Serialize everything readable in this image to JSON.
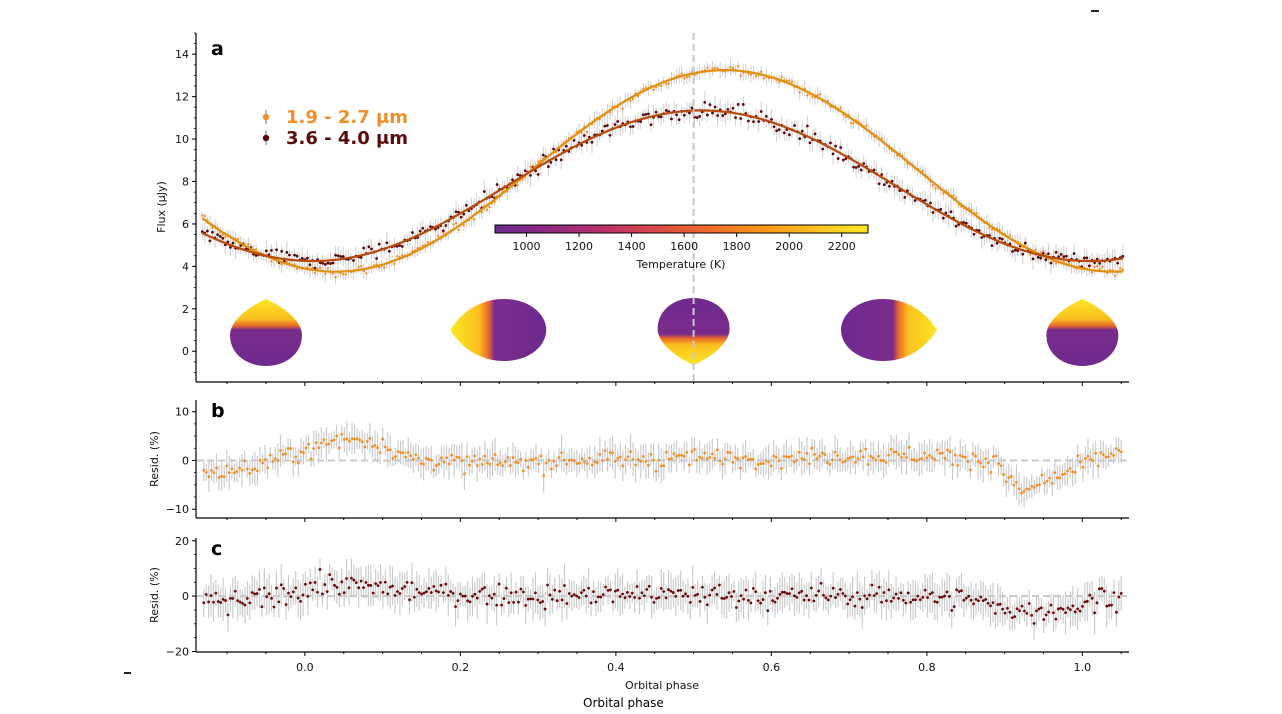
{
  "chart_data": [
    {
      "panel": "a",
      "type": "scatter",
      "ylabel": "Flux (μJy)",
      "xlabel": "",
      "xlim": [
        -0.14,
        1.06
      ],
      "ylim": [
        -1.45,
        15.0
      ],
      "yticks": [
        0,
        2,
        4,
        6,
        8,
        10,
        12,
        14
      ],
      "ytick_labels": [
        "0",
        "2",
        "4",
        "6",
        "8",
        "10",
        "12",
        "14"
      ],
      "vline_phase": 0.5,
      "legend": {
        "position": "upper-left",
        "entries": [
          {
            "label": "1.9 - 2.7 μm",
            "color": "#f0902a"
          },
          {
            "label": "3.6 - 4.0 μm",
            "color": "#5a0a0a"
          }
        ]
      },
      "series": [
        {
          "name": "1.9 - 2.7 μm",
          "marker_color": "#f0902a",
          "fit_color": "#e0900c",
          "model": {
            "mean": 8.5,
            "amplitude": 4.75,
            "peak_phase": 0.54,
            "noise": 0.18
          },
          "sample_points": [
            [
              -0.13,
              5.4
            ],
            [
              0.0,
              3.9
            ],
            [
              0.1,
              3.8
            ],
            [
              0.2,
              5.3
            ],
            [
              0.3,
              8.1
            ],
            [
              0.4,
              11.6
            ],
            [
              0.5,
              13.3
            ],
            [
              0.55,
              13.2
            ],
            [
              0.6,
              13.0
            ],
            [
              0.7,
              11.2
            ],
            [
              0.8,
              7.8
            ],
            [
              0.9,
              4.5
            ],
            [
              1.0,
              3.8
            ],
            [
              1.05,
              3.9
            ]
          ]
        },
        {
          "name": "3.6 - 4.0 μm",
          "marker_color": "#5a0a0a",
          "fit_color": "#b84a0a",
          "model": {
            "mean": 7.8,
            "amplitude": 3.55,
            "peak_phase": 0.51,
            "noise": 0.25
          },
          "sample_points": [
            [
              -0.13,
              5.8
            ],
            [
              0.0,
              4.4
            ],
            [
              0.1,
              4.3
            ],
            [
              0.2,
              5.6
            ],
            [
              0.3,
              8.0
            ],
            [
              0.4,
              10.1
            ],
            [
              0.5,
              11.3
            ],
            [
              0.6,
              11.1
            ],
            [
              0.7,
              9.9
            ],
            [
              0.8,
              7.3
            ],
            [
              0.9,
              5.0
            ],
            [
              1.0,
              4.2
            ],
            [
              1.05,
              4.3
            ]
          ]
        }
      ],
      "colorbar": {
        "label": "Temperature (K)",
        "range": [
          880,
          2300
        ],
        "ticks": [
          1000,
          1200,
          1400,
          1600,
          1800,
          2000,
          2200
        ],
        "tick_labels": [
          "1000",
          "1200",
          "1400",
          "1600",
          "1800",
          "2000",
          "2200"
        ],
        "colormap": "plasma-like",
        "stops": [
          "#6a2c91",
          "#8e2a80",
          "#b8306a",
          "#d84a45",
          "#ee6b2a",
          "#f7951a",
          "#fbc020",
          "#fde725"
        ]
      },
      "planet_views": [
        {
          "phase": -0.05,
          "shape": "teardrop-up",
          "hot_side": "top"
        },
        {
          "phase": 0.25,
          "shape": "lens-left",
          "hot_side": "left"
        },
        {
          "phase": 0.5,
          "shape": "teardrop-down",
          "hot_side": "bottom"
        },
        {
          "phase": 0.75,
          "shape": "lens-right",
          "hot_side": "right"
        },
        {
          "phase": 1.0,
          "shape": "teardrop-up",
          "hot_side": "top"
        }
      ]
    },
    {
      "panel": "b",
      "type": "scatter",
      "ylabel": "Resid. (%)",
      "xlim": [
        -0.14,
        1.06
      ],
      "ylim": [
        -11.8,
        12.4
      ],
      "yticks": [
        -10,
        0,
        10
      ],
      "ytick_labels": [
        "−10",
        "0",
        "10"
      ],
      "marker_color": "#f0902a",
      "error_color": "#c8c8c8",
      "zero_line": true,
      "trend_points": [
        [
          -0.13,
          -2.5
        ],
        [
          -0.08,
          -2.0
        ],
        [
          -0.04,
          0.0
        ],
        [
          0.0,
          2.0
        ],
        [
          0.03,
          3.5
        ],
        [
          0.06,
          4.5
        ],
        [
          0.1,
          3.5
        ],
        [
          0.13,
          0.5
        ],
        [
          0.2,
          -0.5
        ],
        [
          0.3,
          -0.5
        ],
        [
          0.35,
          0.0
        ],
        [
          0.45,
          0.5
        ],
        [
          0.5,
          0.5
        ],
        [
          0.6,
          0.5
        ],
        [
          0.7,
          1.0
        ],
        [
          0.8,
          1.0
        ],
        [
          0.86,
          0.5
        ],
        [
          0.89,
          -0.5
        ],
        [
          0.91,
          -5.0
        ],
        [
          0.93,
          -6.5
        ],
        [
          0.96,
          -4.0
        ],
        [
          0.99,
          -2.0
        ],
        [
          1.02,
          0.5
        ],
        [
          1.06,
          2.0
        ]
      ],
      "noise": 1.3
    },
    {
      "panel": "c",
      "type": "scatter",
      "ylabel": "Resid. (%)",
      "xlabel": "Orbital phase",
      "xlim": [
        -0.14,
        1.06
      ],
      "ylim": [
        -20.2,
        21.0
      ],
      "yticks": [
        -20,
        0,
        20
      ],
      "ytick_labels": [
        "−20",
        "0",
        "20"
      ],
      "xticks": [
        0.0,
        0.2,
        0.4,
        0.6,
        0.8,
        1.0
      ],
      "xtick_labels": [
        "0.0",
        "0.2",
        "0.4",
        "0.6",
        "0.8",
        "1.0"
      ],
      "marker_color": "#6a0a0a",
      "error_color": "#c8c8c8",
      "zero_line": true,
      "trend_points": [
        [
          -0.13,
          -2.0
        ],
        [
          -0.08,
          -2.0
        ],
        [
          -0.04,
          0.0
        ],
        [
          0.0,
          3.0
        ],
        [
          0.05,
          4.0
        ],
        [
          0.1,
          3.0
        ],
        [
          0.15,
          1.5
        ],
        [
          0.2,
          0.5
        ],
        [
          0.3,
          0.0
        ],
        [
          0.4,
          0.5
        ],
        [
          0.5,
          0.5
        ],
        [
          0.6,
          0.0
        ],
        [
          0.7,
          0.0
        ],
        [
          0.8,
          0.0
        ],
        [
          0.85,
          -1.0
        ],
        [
          0.9,
          -4.5
        ],
        [
          0.93,
          -6.0
        ],
        [
          0.97,
          -5.0
        ],
        [
          1.0,
          -3.0
        ],
        [
          1.03,
          0.0
        ],
        [
          1.06,
          -1.0
        ]
      ],
      "noise": 2.8
    }
  ],
  "figure": {
    "panel_letters": [
      "a",
      "b",
      "c"
    ],
    "xlabel_outer": "Orbital phase"
  }
}
